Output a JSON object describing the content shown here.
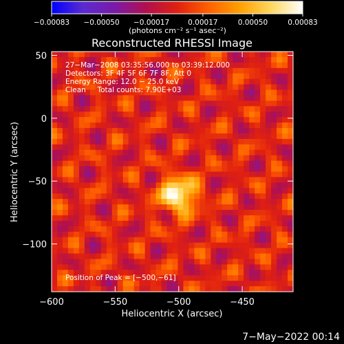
{
  "chart_data": {
    "type": "heatmap",
    "title": "Reconstructed RHESSI Image",
    "xlabel": "Heliocentric X (arcsec)",
    "ylabel": "Heliocentric Y (arcsec)",
    "xlim": [
      -600,
      -410
    ],
    "ylim": [
      -138,
      53
    ],
    "x_ticks": [
      -600,
      -550,
      -500,
      -450
    ],
    "y_ticks": [
      50,
      0,
      -50,
      -100
    ],
    "x_tick_labels": [
      "−600",
      "−550",
      "−500",
      "−450"
    ],
    "y_tick_labels": [
      "50",
      "0",
      "−50",
      "−100"
    ],
    "colorbar": {
      "range": [
        -0.00083,
        0.00083
      ],
      "ticks": [
        -0.00083,
        -0.0005,
        -0.00017,
        0.00017,
        0.0005,
        0.00083
      ],
      "tick_labels": [
        "−0.00083",
        "−0.00050",
        "−0.00017",
        "0.00017",
        "0.00050",
        "0.00083"
      ],
      "unit_label": "(photons cm⁻² s⁻¹ asec⁻²)",
      "colors": [
        "#0000ff",
        "#5a2bd0",
        "#7a1aa8",
        "#b01050",
        "#e02010",
        "#ff6000",
        "#ffa000",
        "#ffd860",
        "#ffffff"
      ]
    },
    "annotations": [
      "27−Mar−2008 03:35:56.000 to 03:39:12.000",
      "Detectors: 3F 4F 5F 6F 7F 8F, Att 0",
      "Energy Range: 12.0 − 25.0 keV",
      "Clean     Total counts: 7.90E+03"
    ],
    "peak_label": "Position of Peak = [−500,−61]",
    "peak": [
      -500,
      -61
    ],
    "grid": false
  },
  "footer": {
    "date": "7−May−2022 00:14"
  }
}
